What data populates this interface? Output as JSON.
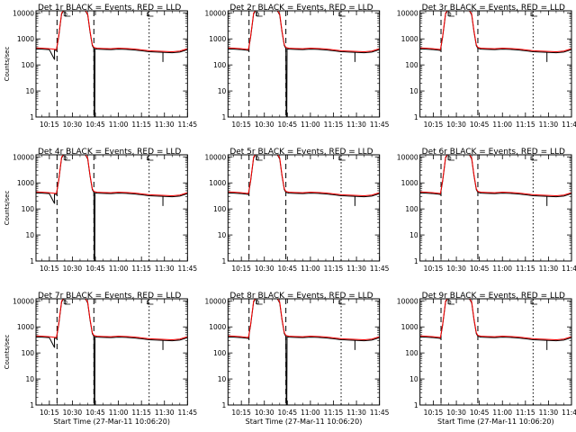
{
  "chart_data": [
    {
      "type": "line",
      "title": "Det 1r BLACK = Events, RED = LLD",
      "xlabel": "",
      "ylabel": "Counts/sec",
      "dip": 1,
      "dip2": 0,
      "rise": 1
    },
    {
      "type": "line",
      "title": "Det 2r BLACK = Events, RED = LLD",
      "xlabel": "",
      "ylabel": "",
      "dip": 1,
      "dip2": 0,
      "rise": 0
    },
    {
      "type": "line",
      "title": "Det 3r BLACK = Events, RED = LLD",
      "xlabel": "",
      "ylabel": "",
      "dip": 0,
      "dip2": 0,
      "rise": 0
    },
    {
      "type": "line",
      "title": "Det 4r BLACK = Events, RED = LLD",
      "xlabel": "",
      "ylabel": "Counts/sec",
      "dip": 1,
      "dip2": 0,
      "rise": 1
    },
    {
      "type": "line",
      "title": "Det 5r BLACK = Events, RED = LLD",
      "xlabel": "",
      "ylabel": "",
      "dip": 0,
      "dip2": 0,
      "rise": 0
    },
    {
      "type": "line",
      "title": "Det 6r BLACK = Events, RED = LLD",
      "xlabel": "",
      "ylabel": "",
      "dip": 0,
      "dip2": 0,
      "rise": 0
    },
    {
      "type": "line",
      "title": "Det 7r BLACK = Events, RED = LLD",
      "xlabel": "Start Time (27-Mar-11 10:06:20)",
      "ylabel": "Counts/sec",
      "dip": 1,
      "dip2": 0,
      "rise": 1
    },
    {
      "type": "line",
      "title": "Det 8r BLACK = Events, RED = LLD",
      "xlabel": "Start Time (27-Mar-11 10:06:20)",
      "ylabel": "",
      "dip": 1,
      "dip2": 0,
      "rise": 0
    },
    {
      "type": "line",
      "title": "Det 9r BLACK = Events, RED = LLD",
      "xlabel": "Start Time (27-Mar-11 10:06:20)",
      "ylabel": "",
      "dip": 0,
      "dip2": 1,
      "rise": 0
    }
  ],
  "axes": {
    "x_ticks": [
      "10:15",
      "10:30",
      "10:45",
      "11:00",
      "11:15",
      "11:30",
      "11:45"
    ],
    "y_ticks": [
      "1",
      "10",
      "100",
      "1000",
      "10000"
    ],
    "ylim": [
      1,
      12000
    ],
    "xlim_min": [
      6.3,
      105
    ]
  },
  "markers": {
    "dashed_x_min": [
      20,
      44
    ],
    "dotted_x_min": [
      80
    ],
    "bracket_labels": [
      "D",
      "L"
    ],
    "bracket_x_min": [
      27,
      81
    ]
  },
  "series_colors": {
    "events": "#000000",
    "lld": "#ff0000"
  },
  "series_shape": {
    "times_min": [
      6.3,
      10,
      15,
      18.3,
      19.6,
      21,
      23,
      25,
      28,
      31,
      35,
      38,
      40,
      41.5,
      43,
      44,
      46,
      50,
      55,
      60,
      65,
      70,
      75,
      80,
      85,
      90,
      95,
      100,
      105
    ],
    "lld_cps": [
      450,
      440,
      420,
      400,
      390,
      1200,
      10000,
      15000,
      15000,
      15000,
      15000,
      15000,
      9000,
      2000,
      600,
      470,
      440,
      430,
      420,
      440,
      430,
      410,
      380,
      350,
      340,
      330,
      320,
      340,
      420
    ],
    "events_ratio": 0.92
  }
}
